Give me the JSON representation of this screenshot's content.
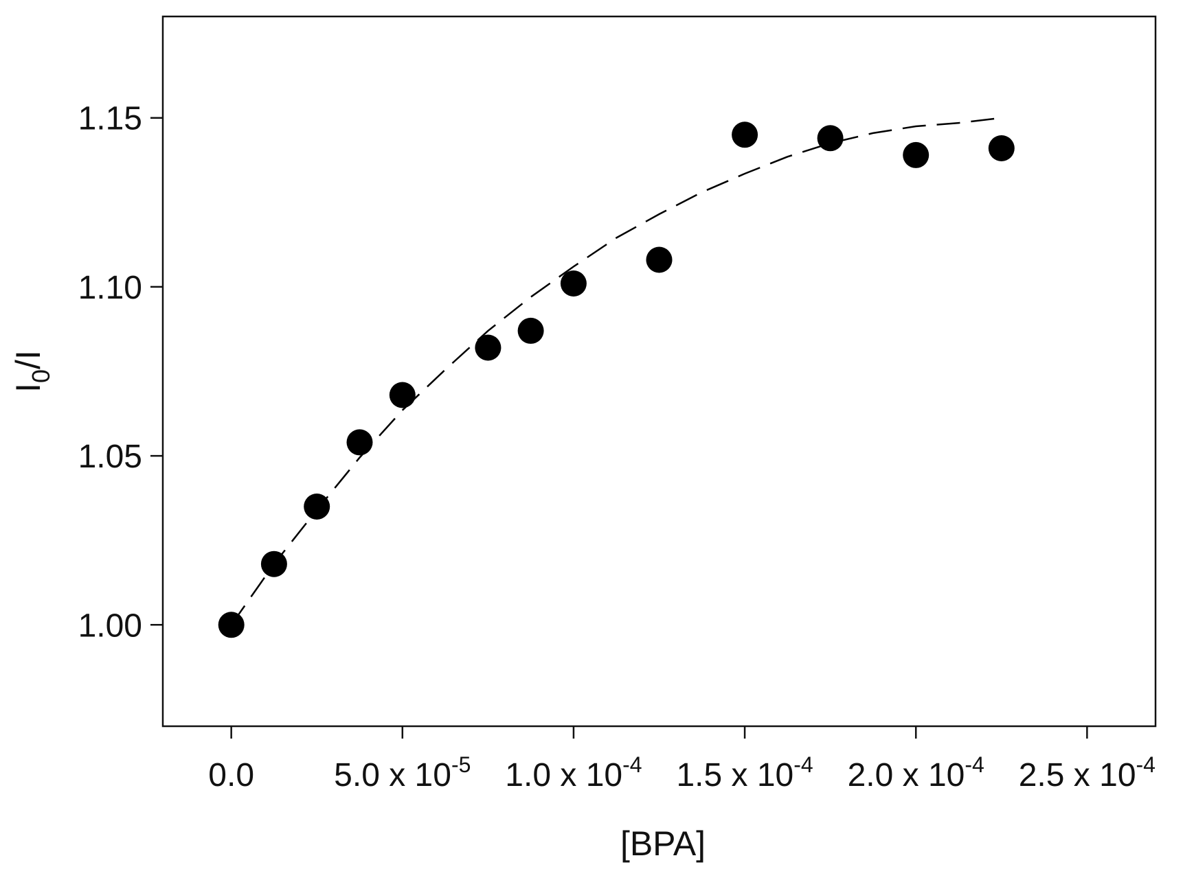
{
  "chart_data": {
    "type": "scatter",
    "title": "",
    "xlabel": "[BPA]",
    "ylabel": {
      "main": "I",
      "sub": "0",
      "rest": "/I"
    },
    "xlim": [
      -2e-05,
      0.00027
    ],
    "ylim": [
      0.97,
      1.18
    ],
    "x_ticks": [
      {
        "value": 0,
        "label": "0.0"
      },
      {
        "value": 5e-05,
        "mantissa": "5.0 x 10",
        "exponent": "-5"
      },
      {
        "value": 0.0001,
        "mantissa": "1.0 x 10",
        "exponent": "-4"
      },
      {
        "value": 0.00015,
        "mantissa": "1.5 x 10",
        "exponent": "-4"
      },
      {
        "value": 0.0002,
        "mantissa": "2.0 x 10",
        "exponent": "-4"
      },
      {
        "value": 0.00025,
        "mantissa": "2.5 x 10",
        "exponent": "-4"
      }
    ],
    "y_ticks": [
      {
        "value": 1.0,
        "label": "1.00"
      },
      {
        "value": 1.05,
        "label": "1.05"
      },
      {
        "value": 1.1,
        "label": "1.10"
      },
      {
        "value": 1.15,
        "label": "1.15"
      }
    ],
    "grid": false,
    "legend": "none",
    "series": [
      {
        "kind": "points",
        "marker": "filled-circle",
        "color": "#000000",
        "x": [
          0,
          1.25e-05,
          2.5e-05,
          3.75e-05,
          5e-05,
          7.5e-05,
          8.75e-05,
          0.0001,
          0.000125,
          0.00015,
          0.000175,
          0.0002,
          0.000225
        ],
        "y": [
          1.0,
          1.018,
          1.035,
          1.054,
          1.068,
          1.082,
          1.087,
          1.101,
          1.108,
          1.145,
          1.144,
          1.139,
          1.141
        ]
      },
      {
        "kind": "fit-line",
        "style": "dashed",
        "color": "#000000",
        "x": [
          0,
          1.25e-05,
          2.5e-05,
          3.75e-05,
          5e-05,
          6.25e-05,
          7.5e-05,
          8.75e-05,
          0.0001,
          0.0001125,
          0.000125,
          0.0001375,
          0.00015,
          0.0001625,
          0.000175,
          0.0001875,
          0.0002,
          0.0002125,
          0.000225
        ],
        "y": [
          1.0,
          1.018,
          1.034,
          1.0495,
          1.0635,
          1.0755,
          1.087,
          1.097,
          1.106,
          1.1145,
          1.1215,
          1.128,
          1.1335,
          1.1385,
          1.1425,
          1.1455,
          1.1475,
          1.1485,
          1.15
        ]
      }
    ]
  }
}
